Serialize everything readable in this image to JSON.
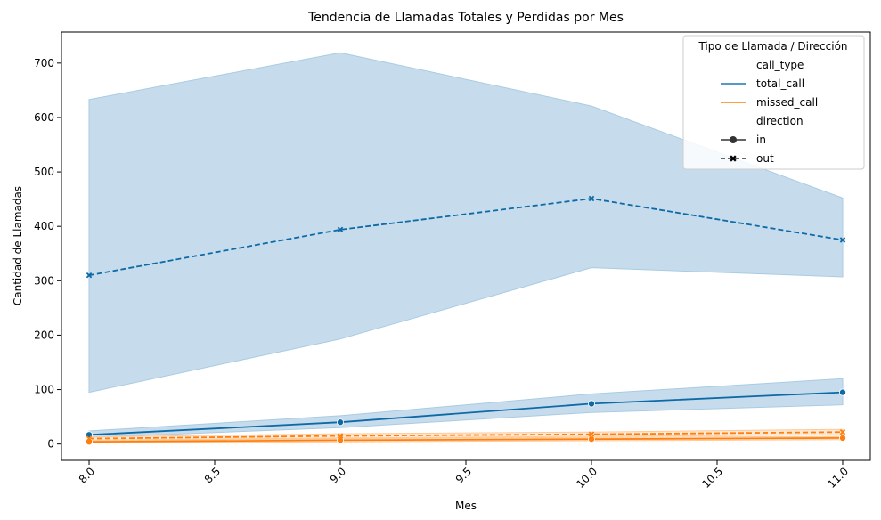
{
  "chart_data": {
    "type": "line",
    "title": "Tendencia de Llamadas Totales y Perdidas por Mes",
    "xlabel": "Mes",
    "ylabel": "Cantidad de Llamadas",
    "xlim": [
      7.89,
      11.11
    ],
    "ylim": [
      -30,
      757
    ],
    "x_ticks": [
      "8.0",
      "8.5",
      "9.0",
      "9.5",
      "10.0",
      "10.5",
      "11.0"
    ],
    "y_ticks": [
      "0",
      "100",
      "200",
      "300",
      "400",
      "500",
      "600",
      "700"
    ],
    "grid": false,
    "legend": {
      "title": "Tipo de Llamada / Dirección",
      "placement": "top-right",
      "hue_title": "call_type",
      "hue_entries": [
        "total_call",
        "missed_call"
      ],
      "style_title": "direction",
      "style_entries": [
        "in",
        "out"
      ]
    },
    "colors": {
      "total_call": "#1f77b4",
      "missed_call": "#ff7f0e",
      "total_line": "#0e6aa6",
      "band_fill": "#c6dcec",
      "band_edge": "#a9cbe3"
    },
    "x": [
      8,
      9,
      10,
      11
    ],
    "series": [
      {
        "name": "total_call",
        "direction": "in",
        "marker": "circle",
        "dashed": false,
        "values": [
          17,
          40,
          74,
          95
        ],
        "ci_low": [
          12,
          30,
          58,
          72
        ],
        "ci_high": [
          24,
          52,
          92,
          120
        ]
      },
      {
        "name": "total_call",
        "direction": "out",
        "marker": "x",
        "dashed": true,
        "values": [
          310,
          394,
          451,
          375
        ],
        "ci_low": [
          95,
          193,
          324,
          307
        ],
        "ci_high": [
          633,
          719,
          621,
          452
        ]
      },
      {
        "name": "missed_call",
        "direction": "in",
        "marker": "circle",
        "dashed": false,
        "values": [
          4,
          7,
          9,
          11
        ],
        "ci_low": [
          2,
          4,
          6,
          8
        ],
        "ci_high": [
          6,
          10,
          12,
          14
        ]
      },
      {
        "name": "missed_call",
        "direction": "out",
        "marker": "x",
        "dashed": true,
        "values": [
          10,
          15,
          18,
          22
        ],
        "ci_low": [
          7,
          11,
          14,
          17
        ],
        "ci_high": [
          13,
          19,
          22,
          27
        ]
      }
    ]
  }
}
